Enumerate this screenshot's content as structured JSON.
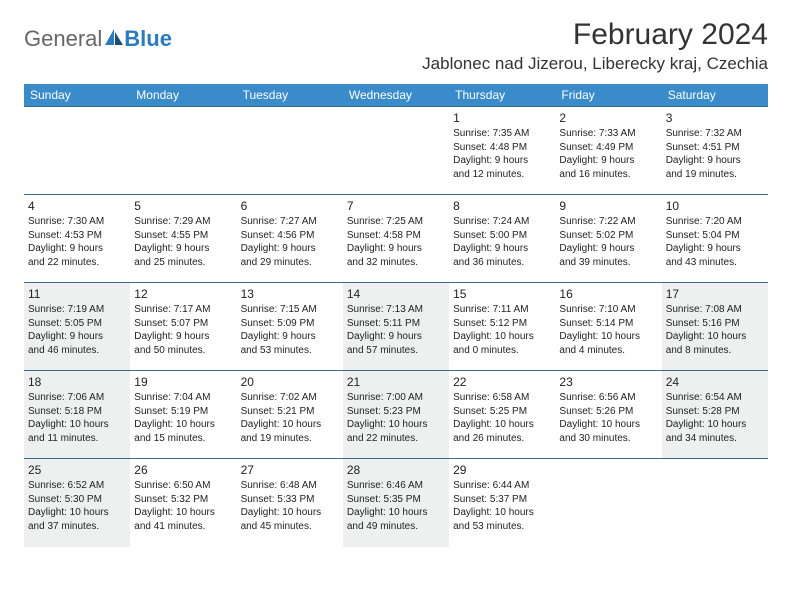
{
  "logo": {
    "text1": "General",
    "text2": "Blue"
  },
  "title": "February 2024",
  "location": "Jablonec nad Jizerou, Liberecky kraj, Czechia",
  "weekdays": [
    "Sunday",
    "Monday",
    "Tuesday",
    "Wednesday",
    "Thursday",
    "Friday",
    "Saturday"
  ],
  "colors": {
    "header_bg": "#3a8bc9",
    "header_text": "#ffffff",
    "border": "#3a6a8f",
    "shaded": "#eef0f0",
    "logo_blue": "#2b7bbf"
  },
  "fonts": {
    "title_size": 30,
    "location_size": 17,
    "weekday_size": 12,
    "daynum_size": 12,
    "body_size": 10
  },
  "grid": [
    [
      {
        "n": "",
        "sr": "",
        "ss": "",
        "dl1": "",
        "dl2": "",
        "shade": false
      },
      {
        "n": "",
        "sr": "",
        "ss": "",
        "dl1": "",
        "dl2": "",
        "shade": false
      },
      {
        "n": "",
        "sr": "",
        "ss": "",
        "dl1": "",
        "dl2": "",
        "shade": false
      },
      {
        "n": "",
        "sr": "",
        "ss": "",
        "dl1": "",
        "dl2": "",
        "shade": false
      },
      {
        "n": "1",
        "sr": "Sunrise: 7:35 AM",
        "ss": "Sunset: 4:48 PM",
        "dl1": "Daylight: 9 hours",
        "dl2": "and 12 minutes.",
        "shade": false
      },
      {
        "n": "2",
        "sr": "Sunrise: 7:33 AM",
        "ss": "Sunset: 4:49 PM",
        "dl1": "Daylight: 9 hours",
        "dl2": "and 16 minutes.",
        "shade": false
      },
      {
        "n": "3",
        "sr": "Sunrise: 7:32 AM",
        "ss": "Sunset: 4:51 PM",
        "dl1": "Daylight: 9 hours",
        "dl2": "and 19 minutes.",
        "shade": false
      }
    ],
    [
      {
        "n": "4",
        "sr": "Sunrise: 7:30 AM",
        "ss": "Sunset: 4:53 PM",
        "dl1": "Daylight: 9 hours",
        "dl2": "and 22 minutes.",
        "shade": false
      },
      {
        "n": "5",
        "sr": "Sunrise: 7:29 AM",
        "ss": "Sunset: 4:55 PM",
        "dl1": "Daylight: 9 hours",
        "dl2": "and 25 minutes.",
        "shade": false
      },
      {
        "n": "6",
        "sr": "Sunrise: 7:27 AM",
        "ss": "Sunset: 4:56 PM",
        "dl1": "Daylight: 9 hours",
        "dl2": "and 29 minutes.",
        "shade": false
      },
      {
        "n": "7",
        "sr": "Sunrise: 7:25 AM",
        "ss": "Sunset: 4:58 PM",
        "dl1": "Daylight: 9 hours",
        "dl2": "and 32 minutes.",
        "shade": false
      },
      {
        "n": "8",
        "sr": "Sunrise: 7:24 AM",
        "ss": "Sunset: 5:00 PM",
        "dl1": "Daylight: 9 hours",
        "dl2": "and 36 minutes.",
        "shade": false
      },
      {
        "n": "9",
        "sr": "Sunrise: 7:22 AM",
        "ss": "Sunset: 5:02 PM",
        "dl1": "Daylight: 9 hours",
        "dl2": "and 39 minutes.",
        "shade": false
      },
      {
        "n": "10",
        "sr": "Sunrise: 7:20 AM",
        "ss": "Sunset: 5:04 PM",
        "dl1": "Daylight: 9 hours",
        "dl2": "and 43 minutes.",
        "shade": false
      }
    ],
    [
      {
        "n": "11",
        "sr": "Sunrise: 7:19 AM",
        "ss": "Sunset: 5:05 PM",
        "dl1": "Daylight: 9 hours",
        "dl2": "and 46 minutes.",
        "shade": true
      },
      {
        "n": "12",
        "sr": "Sunrise: 7:17 AM",
        "ss": "Sunset: 5:07 PM",
        "dl1": "Daylight: 9 hours",
        "dl2": "and 50 minutes.",
        "shade": false
      },
      {
        "n": "13",
        "sr": "Sunrise: 7:15 AM",
        "ss": "Sunset: 5:09 PM",
        "dl1": "Daylight: 9 hours",
        "dl2": "and 53 minutes.",
        "shade": false
      },
      {
        "n": "14",
        "sr": "Sunrise: 7:13 AM",
        "ss": "Sunset: 5:11 PM",
        "dl1": "Daylight: 9 hours",
        "dl2": "and 57 minutes.",
        "shade": true
      },
      {
        "n": "15",
        "sr": "Sunrise: 7:11 AM",
        "ss": "Sunset: 5:12 PM",
        "dl1": "Daylight: 10 hours",
        "dl2": "and 0 minutes.",
        "shade": false
      },
      {
        "n": "16",
        "sr": "Sunrise: 7:10 AM",
        "ss": "Sunset: 5:14 PM",
        "dl1": "Daylight: 10 hours",
        "dl2": "and 4 minutes.",
        "shade": false
      },
      {
        "n": "17",
        "sr": "Sunrise: 7:08 AM",
        "ss": "Sunset: 5:16 PM",
        "dl1": "Daylight: 10 hours",
        "dl2": "and 8 minutes.",
        "shade": true
      }
    ],
    [
      {
        "n": "18",
        "sr": "Sunrise: 7:06 AM",
        "ss": "Sunset: 5:18 PM",
        "dl1": "Daylight: 10 hours",
        "dl2": "and 11 minutes.",
        "shade": true
      },
      {
        "n": "19",
        "sr": "Sunrise: 7:04 AM",
        "ss": "Sunset: 5:19 PM",
        "dl1": "Daylight: 10 hours",
        "dl2": "and 15 minutes.",
        "shade": false
      },
      {
        "n": "20",
        "sr": "Sunrise: 7:02 AM",
        "ss": "Sunset: 5:21 PM",
        "dl1": "Daylight: 10 hours",
        "dl2": "and 19 minutes.",
        "shade": false
      },
      {
        "n": "21",
        "sr": "Sunrise: 7:00 AM",
        "ss": "Sunset: 5:23 PM",
        "dl1": "Daylight: 10 hours",
        "dl2": "and 22 minutes.",
        "shade": true
      },
      {
        "n": "22",
        "sr": "Sunrise: 6:58 AM",
        "ss": "Sunset: 5:25 PM",
        "dl1": "Daylight: 10 hours",
        "dl2": "and 26 minutes.",
        "shade": false
      },
      {
        "n": "23",
        "sr": "Sunrise: 6:56 AM",
        "ss": "Sunset: 5:26 PM",
        "dl1": "Daylight: 10 hours",
        "dl2": "and 30 minutes.",
        "shade": false
      },
      {
        "n": "24",
        "sr": "Sunrise: 6:54 AM",
        "ss": "Sunset: 5:28 PM",
        "dl1": "Daylight: 10 hours",
        "dl2": "and 34 minutes.",
        "shade": true
      }
    ],
    [
      {
        "n": "25",
        "sr": "Sunrise: 6:52 AM",
        "ss": "Sunset: 5:30 PM",
        "dl1": "Daylight: 10 hours",
        "dl2": "and 37 minutes.",
        "shade": true
      },
      {
        "n": "26",
        "sr": "Sunrise: 6:50 AM",
        "ss": "Sunset: 5:32 PM",
        "dl1": "Daylight: 10 hours",
        "dl2": "and 41 minutes.",
        "shade": false
      },
      {
        "n": "27",
        "sr": "Sunrise: 6:48 AM",
        "ss": "Sunset: 5:33 PM",
        "dl1": "Daylight: 10 hours",
        "dl2": "and 45 minutes.",
        "shade": false
      },
      {
        "n": "28",
        "sr": "Sunrise: 6:46 AM",
        "ss": "Sunset: 5:35 PM",
        "dl1": "Daylight: 10 hours",
        "dl2": "and 49 minutes.",
        "shade": true
      },
      {
        "n": "29",
        "sr": "Sunrise: 6:44 AM",
        "ss": "Sunset: 5:37 PM",
        "dl1": "Daylight: 10 hours",
        "dl2": "and 53 minutes.",
        "shade": false
      },
      {
        "n": "",
        "sr": "",
        "ss": "",
        "dl1": "",
        "dl2": "",
        "shade": false
      },
      {
        "n": "",
        "sr": "",
        "ss": "",
        "dl1": "",
        "dl2": "",
        "shade": false
      }
    ]
  ]
}
